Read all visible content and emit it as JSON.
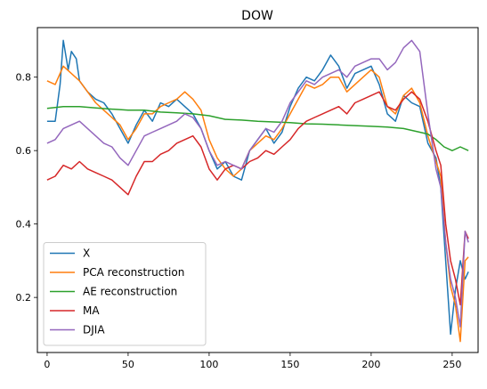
{
  "chart_data": {
    "type": "line",
    "title": "DOW",
    "xlabel": "",
    "ylabel": "",
    "xlim": [
      -6,
      266
    ],
    "ylim": [
      0.05,
      0.935
    ],
    "xticks": [
      0,
      50,
      100,
      150,
      200,
      250
    ],
    "yticks": [
      0.2,
      0.4,
      0.6,
      0.8
    ],
    "legend_position": "lower-left",
    "grid": false,
    "series": [
      {
        "name": "X",
        "color": "#1f77b4",
        "x": [
          0,
          5,
          8,
          10,
          13,
          15,
          18,
          20,
          25,
          30,
          35,
          40,
          45,
          50,
          55,
          60,
          65,
          70,
          75,
          80,
          85,
          90,
          95,
          100,
          105,
          110,
          115,
          120,
          125,
          130,
          135,
          140,
          145,
          150,
          155,
          160,
          165,
          170,
          175,
          180,
          185,
          190,
          195,
          200,
          205,
          210,
          215,
          220,
          225,
          230,
          235,
          240,
          243,
          246,
          249,
          252,
          255,
          258,
          260
        ],
        "values": [
          0.68,
          0.68,
          0.78,
          0.9,
          0.82,
          0.87,
          0.85,
          0.79,
          0.76,
          0.74,
          0.73,
          0.7,
          0.66,
          0.62,
          0.67,
          0.71,
          0.68,
          0.73,
          0.72,
          0.74,
          0.72,
          0.7,
          0.66,
          0.6,
          0.55,
          0.57,
          0.53,
          0.52,
          0.6,
          0.63,
          0.66,
          0.62,
          0.65,
          0.72,
          0.77,
          0.8,
          0.79,
          0.82,
          0.86,
          0.83,
          0.77,
          0.81,
          0.82,
          0.83,
          0.78,
          0.7,
          0.68,
          0.75,
          0.73,
          0.72,
          0.62,
          0.58,
          0.5,
          0.3,
          0.1,
          0.22,
          0.3,
          0.25,
          0.27
        ]
      },
      {
        "name": "PCA reconstruction",
        "color": "#ff7f0e",
        "x": [
          0,
          5,
          10,
          15,
          20,
          25,
          30,
          35,
          40,
          45,
          50,
          55,
          60,
          65,
          70,
          75,
          80,
          85,
          90,
          95,
          100,
          105,
          110,
          115,
          120,
          125,
          130,
          135,
          140,
          145,
          150,
          155,
          160,
          165,
          170,
          175,
          180,
          185,
          190,
          195,
          200,
          205,
          210,
          215,
          220,
          225,
          230,
          235,
          240,
          243,
          246,
          249,
          252,
          255,
          258,
          260
        ],
        "values": [
          0.79,
          0.78,
          0.83,
          0.81,
          0.79,
          0.76,
          0.73,
          0.71,
          0.69,
          0.67,
          0.63,
          0.66,
          0.7,
          0.7,
          0.72,
          0.73,
          0.74,
          0.76,
          0.74,
          0.71,
          0.63,
          0.58,
          0.55,
          0.53,
          0.55,
          0.6,
          0.62,
          0.64,
          0.63,
          0.66,
          0.7,
          0.74,
          0.78,
          0.77,
          0.78,
          0.8,
          0.8,
          0.76,
          0.78,
          0.8,
          0.82,
          0.8,
          0.72,
          0.7,
          0.75,
          0.77,
          0.73,
          0.64,
          0.57,
          0.53,
          0.35,
          0.23,
          0.18,
          0.08,
          0.3,
          0.31
        ]
      },
      {
        "name": "AE reconstruction",
        "color": "#2ca02c",
        "x": [
          0,
          10,
          20,
          30,
          40,
          50,
          60,
          70,
          80,
          90,
          100,
          110,
          120,
          130,
          140,
          150,
          160,
          170,
          180,
          190,
          200,
          210,
          220,
          230,
          235,
          240,
          245,
          250,
          255,
          260
        ],
        "values": [
          0.715,
          0.72,
          0.72,
          0.716,
          0.713,
          0.71,
          0.71,
          0.705,
          0.703,
          0.7,
          0.695,
          0.685,
          0.683,
          0.68,
          0.678,
          0.676,
          0.673,
          0.672,
          0.67,
          0.668,
          0.666,
          0.664,
          0.66,
          0.65,
          0.645,
          0.63,
          0.61,
          0.6,
          0.61,
          0.6
        ]
      },
      {
        "name": "MA",
        "color": "#d62728",
        "x": [
          0,
          5,
          10,
          15,
          20,
          25,
          30,
          35,
          40,
          45,
          50,
          55,
          60,
          65,
          70,
          75,
          80,
          85,
          90,
          95,
          100,
          105,
          110,
          115,
          120,
          125,
          130,
          135,
          140,
          145,
          150,
          155,
          160,
          165,
          170,
          175,
          180,
          185,
          190,
          195,
          200,
          205,
          210,
          215,
          220,
          225,
          230,
          235,
          240,
          243,
          246,
          249,
          252,
          255,
          258,
          260
        ],
        "values": [
          0.52,
          0.53,
          0.56,
          0.55,
          0.57,
          0.55,
          0.54,
          0.53,
          0.52,
          0.5,
          0.48,
          0.53,
          0.57,
          0.57,
          0.59,
          0.6,
          0.62,
          0.63,
          0.64,
          0.61,
          0.55,
          0.52,
          0.55,
          0.56,
          0.55,
          0.57,
          0.58,
          0.6,
          0.59,
          0.61,
          0.63,
          0.66,
          0.68,
          0.69,
          0.7,
          0.71,
          0.72,
          0.7,
          0.73,
          0.74,
          0.75,
          0.76,
          0.72,
          0.71,
          0.74,
          0.76,
          0.74,
          0.68,
          0.6,
          0.56,
          0.4,
          0.3,
          0.25,
          0.18,
          0.38,
          0.36
        ]
      },
      {
        "name": "DJIA",
        "color": "#9467bd",
        "x": [
          0,
          5,
          10,
          15,
          20,
          25,
          30,
          35,
          40,
          45,
          50,
          55,
          60,
          65,
          70,
          75,
          80,
          85,
          90,
          95,
          100,
          105,
          110,
          115,
          120,
          125,
          130,
          135,
          140,
          145,
          150,
          155,
          160,
          165,
          170,
          175,
          180,
          185,
          190,
          195,
          200,
          205,
          210,
          215,
          220,
          225,
          230,
          235,
          240,
          243,
          246,
          249,
          252,
          255,
          258,
          260
        ],
        "values": [
          0.62,
          0.63,
          0.66,
          0.67,
          0.68,
          0.66,
          0.64,
          0.62,
          0.61,
          0.58,
          0.56,
          0.6,
          0.64,
          0.65,
          0.66,
          0.67,
          0.68,
          0.7,
          0.69,
          0.66,
          0.6,
          0.56,
          0.57,
          0.56,
          0.55,
          0.6,
          0.63,
          0.66,
          0.65,
          0.68,
          0.73,
          0.76,
          0.79,
          0.78,
          0.8,
          0.81,
          0.82,
          0.8,
          0.83,
          0.84,
          0.85,
          0.85,
          0.82,
          0.84,
          0.88,
          0.9,
          0.87,
          0.7,
          0.55,
          0.5,
          0.35,
          0.25,
          0.2,
          0.12,
          0.38,
          0.35
        ]
      }
    ]
  }
}
